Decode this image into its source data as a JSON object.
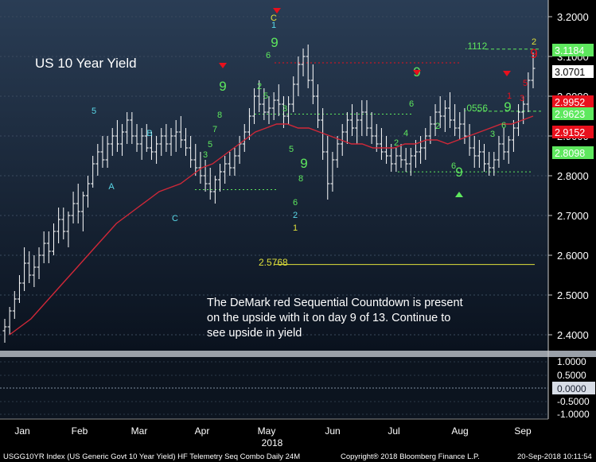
{
  "chart_data": {
    "type": "bar",
    "subtype": "ohlc-with-demark-sequential",
    "title": "US 10 Year Yield",
    "annotation": "The DeMark red Sequential Countdown is present on the upside with it on day 9 of 13.    Continue to see upside in yield",
    "x_tick_labels": [
      "Jan",
      "Feb",
      "Mar",
      "Apr",
      "May",
      "Jun",
      "Jul",
      "Aug",
      "Sep"
    ],
    "year_label": "2018",
    "y_ticks": [
      "3.2000",
      "3.1000",
      "3.0000",
      "2.9000",
      "2.8000",
      "2.7000",
      "2.6000",
      "2.5000",
      "2.4000"
    ],
    "ylim": [
      2.36,
      3.23
    ],
    "price_labels": [
      {
        "text": "3.1184",
        "color": "#5ee85e",
        "value": 3.1184
      },
      {
        "text": "3.0701",
        "color": "#ffffff",
        "value": 3.0701
      },
      {
        "text": "2.9952",
        "color": "#e8101c",
        "value": 2.9952
      },
      {
        "text": "2.9623",
        "color": "#5ee85e",
        "value": 2.9623
      },
      {
        "text": "2.9152",
        "color": "#e8101c",
        "value": 2.9152
      },
      {
        "text": "2.8098",
        "color": "#5ee85e",
        "value": 2.8098
      }
    ],
    "level_labels": [
      {
        "text": ".1112",
        "color": "#5ee85e"
      },
      {
        "text": ".0556",
        "color": "#5ee85e"
      },
      {
        "text": "2.5768",
        "color": "#e0e03a"
      }
    ],
    "series": [
      {
        "name": "",
        "ohlc": [
          [
            2.41,
            2.44,
            2.38,
            2.42
          ],
          [
            2.42,
            2.47,
            2.4,
            2.46
          ],
          [
            2.46,
            2.51,
            2.44,
            2.49
          ],
          [
            2.49,
            2.55,
            2.48,
            2.53
          ],
          [
            2.53,
            2.62,
            2.51,
            2.58
          ],
          [
            2.58,
            2.61,
            2.53,
            2.55
          ],
          [
            2.55,
            2.6,
            2.52,
            2.57
          ],
          [
            2.57,
            2.62,
            2.54,
            2.6
          ],
          [
            2.6,
            2.66,
            2.58,
            2.63
          ],
          [
            2.63,
            2.66,
            2.58,
            2.61
          ],
          [
            2.61,
            2.68,
            2.6,
            2.66
          ],
          [
            2.66,
            2.72,
            2.63,
            2.69
          ],
          [
            2.69,
            2.72,
            2.64,
            2.66
          ],
          [
            2.66,
            2.71,
            2.62,
            2.7
          ],
          [
            2.7,
            2.76,
            2.68,
            2.73
          ],
          [
            2.73,
            2.78,
            2.68,
            2.71
          ],
          [
            2.71,
            2.76,
            2.66,
            2.75
          ],
          [
            2.75,
            2.8,
            2.72,
            2.78
          ],
          [
            2.78,
            2.85,
            2.77,
            2.83
          ],
          [
            2.83,
            2.88,
            2.8,
            2.86
          ],
          [
            2.86,
            2.9,
            2.82,
            2.84
          ],
          [
            2.84,
            2.9,
            2.82,
            2.88
          ],
          [
            2.88,
            2.92,
            2.85,
            2.9
          ],
          [
            2.9,
            2.94,
            2.86,
            2.88
          ],
          [
            2.88,
            2.93,
            2.85,
            2.91
          ],
          [
            2.91,
            2.96,
            2.88,
            2.94
          ],
          [
            2.94,
            2.96,
            2.88,
            2.9
          ],
          [
            2.9,
            2.93,
            2.86,
            2.88
          ],
          [
            2.88,
            2.92,
            2.84,
            2.9
          ],
          [
            2.9,
            2.93,
            2.86,
            2.87
          ],
          [
            2.87,
            2.91,
            2.84,
            2.86
          ],
          [
            2.86,
            2.9,
            2.83,
            2.88
          ],
          [
            2.88,
            2.92,
            2.85,
            2.9
          ],
          [
            2.9,
            2.93,
            2.86,
            2.88
          ],
          [
            2.88,
            2.92,
            2.85,
            2.9
          ],
          [
            2.9,
            2.94,
            2.86,
            2.91
          ],
          [
            2.91,
            2.95,
            2.87,
            2.89
          ],
          [
            2.89,
            2.92,
            2.85,
            2.87
          ],
          [
            2.87,
            2.9,
            2.82,
            2.84
          ],
          [
            2.84,
            2.88,
            2.8,
            2.82
          ],
          [
            2.82,
            2.86,
            2.78,
            2.8
          ],
          [
            2.8,
            2.84,
            2.76,
            2.78
          ],
          [
            2.78,
            2.82,
            2.74,
            2.76
          ],
          [
            2.76,
            2.8,
            2.73,
            2.79
          ],
          [
            2.79,
            2.83,
            2.76,
            2.81
          ],
          [
            2.81,
            2.85,
            2.78,
            2.83
          ],
          [
            2.83,
            2.86,
            2.8,
            2.82
          ],
          [
            2.82,
            2.87,
            2.8,
            2.85
          ],
          [
            2.85,
            2.9,
            2.83,
            2.88
          ],
          [
            2.88,
            2.93,
            2.86,
            2.91
          ],
          [
            2.91,
            2.97,
            2.89,
            2.95
          ],
          [
            2.95,
            3.02,
            2.93,
            3
          ],
          [
            3,
            3.04,
            2.96,
            2.98
          ],
          [
            2.98,
            3.02,
            2.94,
            2.96
          ],
          [
            2.96,
            3.0,
            2.93,
            2.97
          ],
          [
            2.97,
            3.01,
            2.94,
            2.99
          ],
          [
            2.99,
            3.03,
            2.95,
            2.98
          ],
          [
            2.98,
            3.0,
            2.92,
            2.95
          ],
          [
            2.95,
            3.0,
            2.93,
            2.98
          ],
          [
            2.98,
            3.05,
            2.96,
            3.03
          ],
          [
            3.03,
            3.1,
            3.0,
            3.08
          ],
          [
            3.08,
            3.12,
            3.05,
            3.1
          ],
          [
            3.1,
            3.13,
            3.02,
            3.04
          ],
          [
            3.04,
            3.08,
            2.98,
            3.0
          ],
          [
            3.0,
            3.03,
            2.92,
            2.94
          ],
          [
            2.94,
            2.97,
            2.84,
            2.86
          ],
          [
            2.86,
            2.9,
            2.74,
            2.78
          ],
          [
            2.78,
            2.86,
            2.76,
            2.84
          ],
          [
            2.84,
            2.9,
            2.82,
            2.88
          ],
          [
            2.88,
            2.93,
            2.85,
            2.91
          ],
          [
            2.91,
            2.96,
            2.88,
            2.94
          ],
          [
            2.94,
            2.98,
            2.9,
            2.92
          ],
          [
            2.92,
            2.96,
            2.88,
            2.94
          ],
          [
            2.94,
            2.99,
            2.9,
            2.96
          ],
          [
            2.96,
            2.99,
            2.9,
            2.92
          ],
          [
            2.92,
            2.96,
            2.88,
            2.9
          ],
          [
            2.9,
            2.93,
            2.86,
            2.88
          ],
          [
            2.88,
            2.92,
            2.84,
            2.86
          ],
          [
            2.86,
            2.9,
            2.83,
            2.85
          ],
          [
            2.85,
            2.88,
            2.81,
            2.83
          ],
          [
            2.83,
            2.87,
            2.81,
            2.85
          ],
          [
            2.85,
            2.88,
            2.82,
            2.84
          ],
          [
            2.84,
            2.87,
            2.81,
            2.83
          ],
          [
            2.83,
            2.87,
            2.8,
            2.85
          ],
          [
            2.85,
            2.89,
            2.82,
            2.86
          ],
          [
            2.86,
            2.9,
            2.83,
            2.87
          ],
          [
            2.87,
            2.92,
            2.84,
            2.9
          ],
          [
            2.9,
            2.95,
            2.88,
            2.93
          ],
          [
            2.93,
            2.98,
            2.9,
            2.96
          ],
          [
            2.96,
            3.0,
            2.92,
            2.95
          ],
          [
            2.95,
            2.99,
            2.91,
            2.97
          ],
          [
            2.97,
            3.01,
            2.92,
            2.94
          ],
          [
            2.94,
            2.98,
            2.9,
            2.92
          ],
          [
            2.92,
            2.96,
            2.89,
            2.93
          ],
          [
            2.93,
            2.97,
            2.88,
            2.9
          ],
          [
            2.9,
            2.93,
            2.85,
            2.87
          ],
          [
            2.87,
            2.9,
            2.82,
            2.85
          ],
          [
            2.85,
            2.89,
            2.82,
            2.86
          ],
          [
            2.86,
            2.88,
            2.81,
            2.83
          ],
          [
            2.83,
            2.86,
            2.8,
            2.82
          ],
          [
            2.82,
            2.86,
            2.8,
            2.84
          ],
          [
            2.84,
            2.9,
            2.82,
            2.88
          ],
          [
            2.88,
            2.92,
            2.84,
            2.86
          ],
          [
            2.86,
            2.9,
            2.83,
            2.89
          ],
          [
            2.89,
            2.94,
            2.86,
            2.92
          ],
          [
            2.92,
            2.98,
            2.9,
            2.96
          ],
          [
            2.96,
            3.0,
            2.93,
            2.98
          ],
          [
            2.98,
            3.06,
            2.96,
            3.04
          ],
          [
            3.04,
            3.11,
            3.02,
            3.07
          ]
        ]
      },
      {
        "name": "",
        "ma": [
          2.4,
          2.42,
          2.44,
          2.47,
          2.5,
          2.53,
          2.56,
          2.59,
          2.62,
          2.65,
          2.68,
          2.7,
          2.72,
          2.74,
          2.76,
          2.77,
          2.78,
          2.8,
          2.82,
          2.83,
          2.85,
          2.87,
          2.89,
          2.91,
          2.92,
          2.93,
          2.93,
          2.92,
          2.92,
          2.91,
          2.9,
          2.89,
          2.88,
          2.88,
          2.87,
          2.87,
          2.87,
          2.88,
          2.88,
          2.89,
          2.89,
          2.88,
          2.89,
          2.9,
          2.91,
          2.92,
          2.93,
          2.93,
          2.94,
          2.95
        ]
      }
    ]
  }
}
